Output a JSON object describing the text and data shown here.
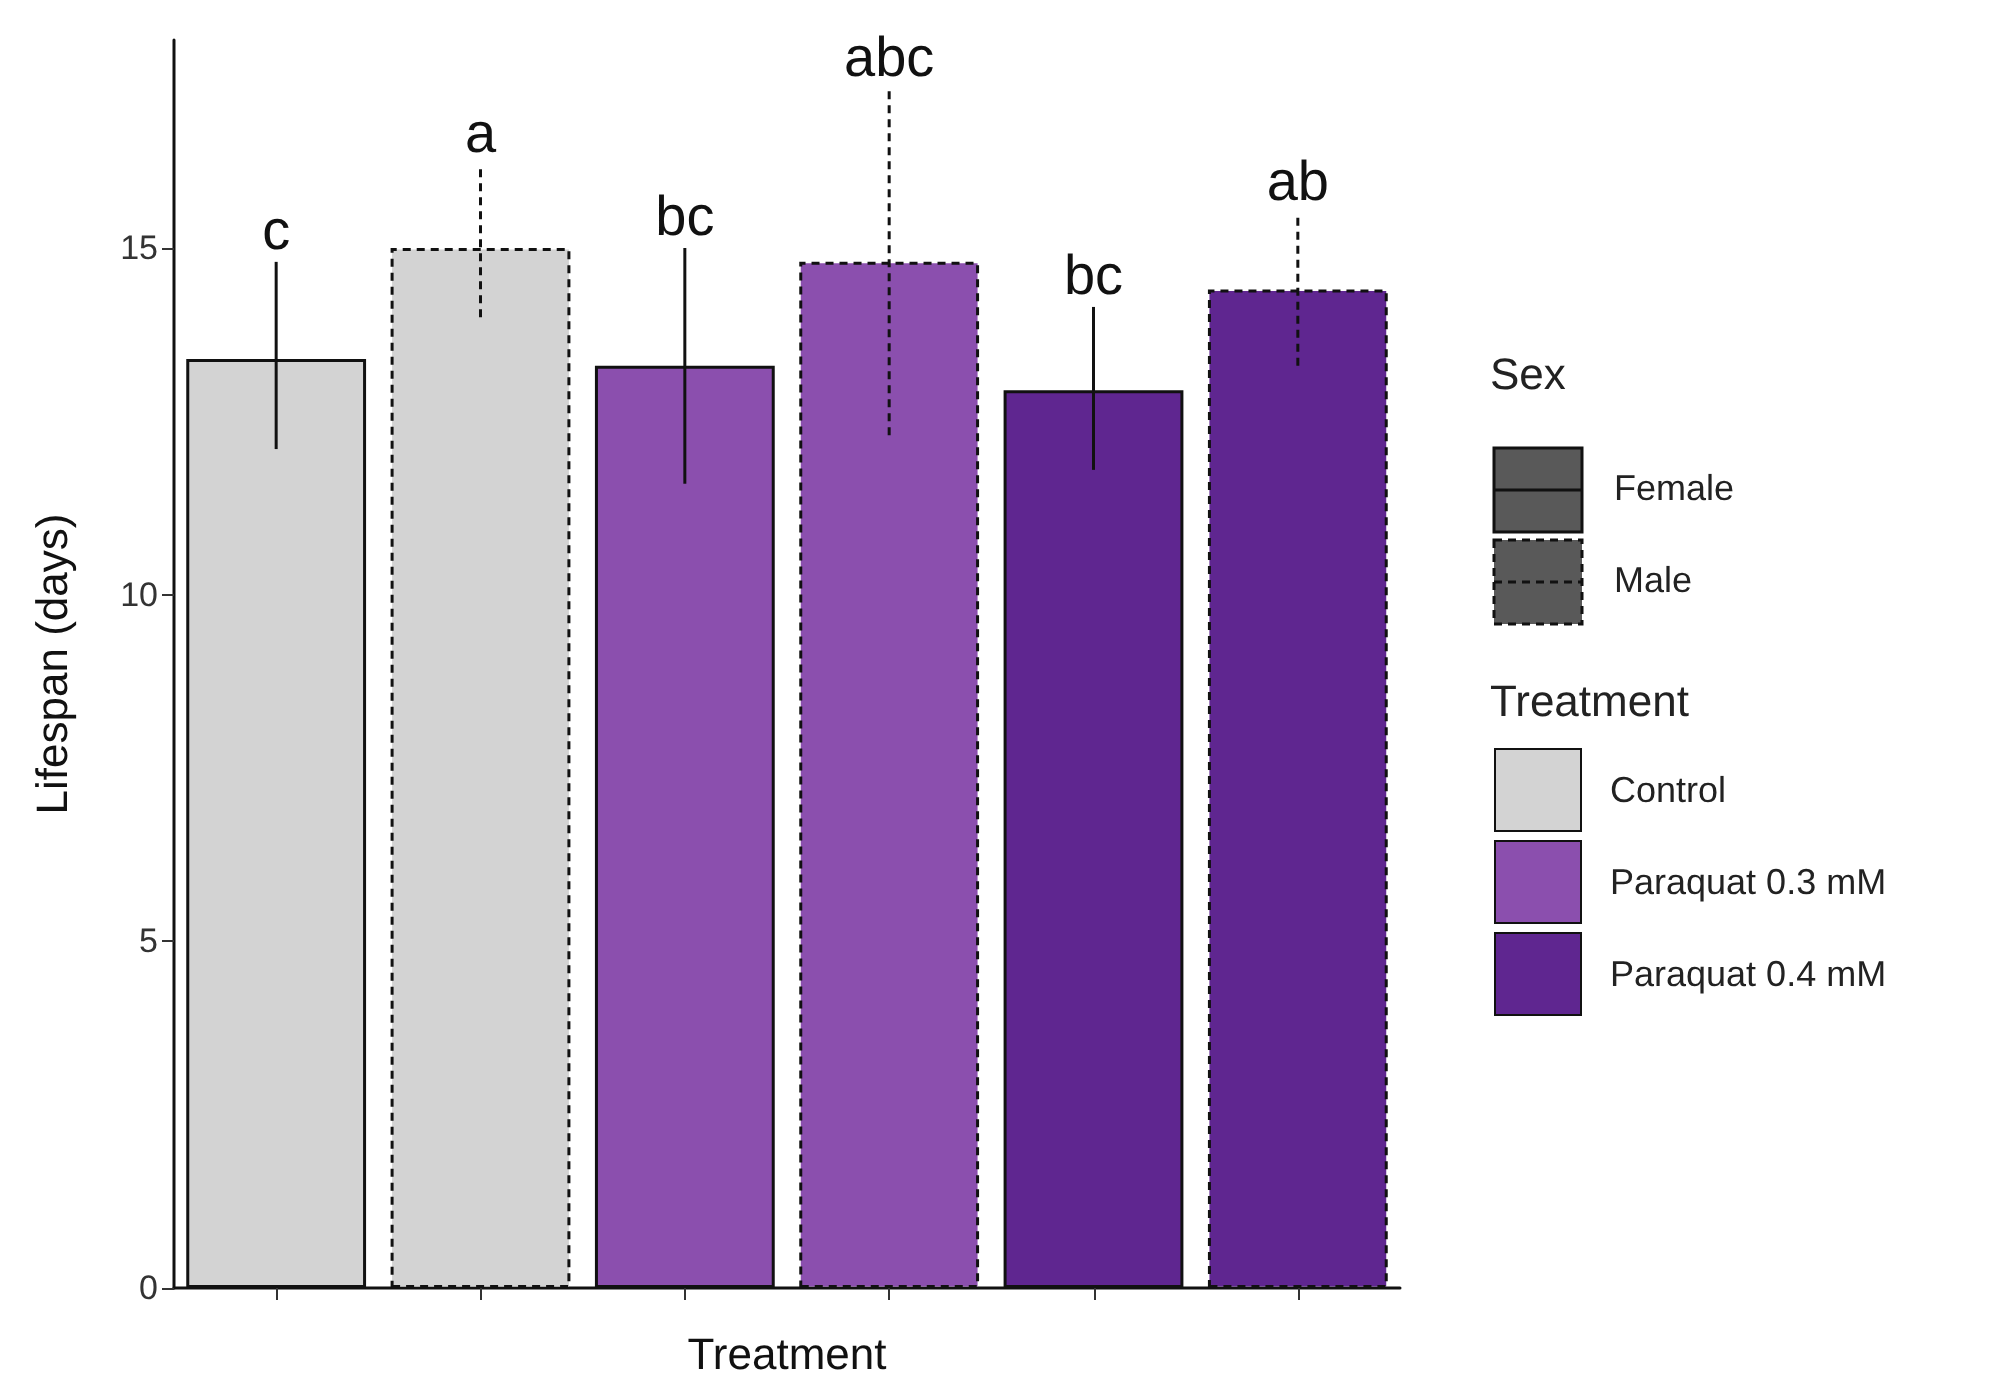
{
  "chart_data": [
    {
      "type": "bar",
      "xlabel": "Treatment",
      "ylabel": "Lifespan (days)",
      "categories": [
        null,
        null,
        null,
        null,
        null,
        null
      ],
      "stacked": true,
      "ylim": [
        0,
        18
      ],
      "yticks": [
        0,
        5,
        10,
        15
      ],
      "grid": false,
      "legend": "right",
      "legend_title": "Sex",
      "series": [
        {
          "name": "Female",
          "line_style": "solid",
          "colors": [
            "#d3d3d3",
            null,
            "#8b4fae",
            null,
            "#5f2690",
            null
          ],
          "values": [
            13.4,
            null,
            13.3,
            null,
            12.95,
            null
          ],
          "errors": [
            [
              12.1,
              14.8
            ],
            null,
            [
              11.6,
              15.0
            ],
            null,
            [
              11.8,
              14.15
            ],
            null
          ]
        },
        {
          "name": "Male",
          "line_style": "dashed",
          "colors": [
            null,
            "#d3d3d3",
            null,
            "#8b4fae",
            null,
            "#5f2690"
          ],
          "values": [
            null,
            15.0,
            null,
            14.8,
            null,
            14.4
          ],
          "errors": [
            null,
            [
              14.0,
              16.2
            ],
            null,
            [
              12.3,
              17.3
            ],
            null,
            [
              13.3,
              15.5
            ]
          ]
        }
      ],
      "annotations": [
        "c",
        "a",
        "bc",
        "abc",
        "bc",
        "ab"
      ]
    },
    {
      "type": "other",
      "title": "Treatment",
      "categories": [
        "Control",
        "Paraquat 0.3 mM",
        "Paraquat 0.4 mM"
      ],
      "colors": [
        "#d3d3d3",
        "#8b4fae",
        "#5f2690"
      ]
    }
  ]
}
